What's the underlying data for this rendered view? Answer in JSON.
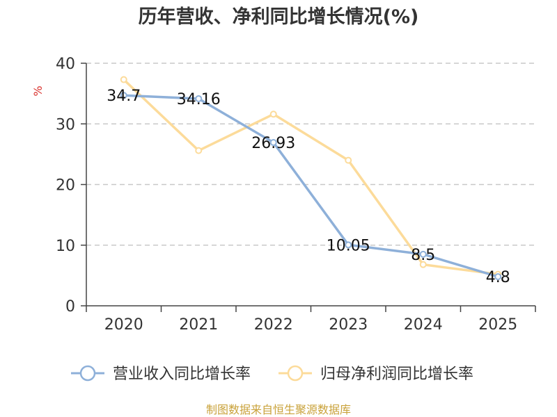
{
  "chart_data": {
    "type": "line",
    "title": "历年营收、净利同比增长情况(%)",
    "ylabel": "%",
    "xlabel": "",
    "categories": [
      "2020",
      "2021",
      "2022",
      "2023",
      "2024",
      "2025"
    ],
    "ylim": [
      0,
      40
    ],
    "yticks": [
      0,
      10,
      20,
      30,
      40
    ],
    "grid": true,
    "legend_position": "bottom",
    "series": [
      {
        "name": "营业收入同比增长率",
        "color": "#8eb0d9",
        "values": [
          34.7,
          34.16,
          26.93,
          10.05,
          8.5,
          4.8
        ],
        "data_labels": [
          "34.7",
          "34.16",
          "26.93",
          "10.05",
          "8.5",
          "4.8"
        ]
      },
      {
        "name": "归母净利润同比增长率",
        "color": "#fcdb9a",
        "values": [
          37.3,
          25.6,
          31.6,
          24.0,
          6.8,
          5.2
        ]
      }
    ]
  },
  "source_text": "制图数据来自恒生聚源数据库"
}
